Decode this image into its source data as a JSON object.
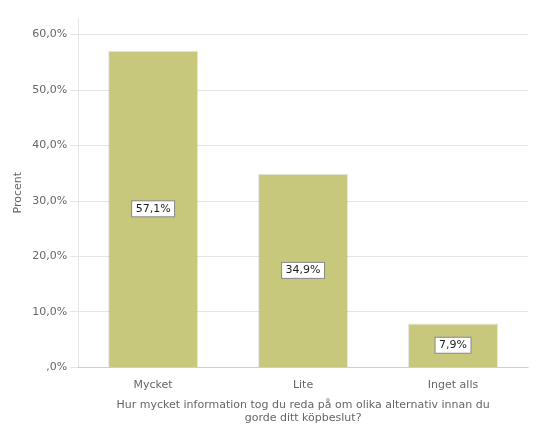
{
  "chart_data": {
    "type": "bar",
    "xlabel": "Hur mycket information tog du reda på om olika alternativ innan du\ngorde ditt köpbeslut?",
    "ylabel": "Procent",
    "categories": [
      "Mycket",
      "Lite",
      "Inget alls"
    ],
    "values": [
      57.1,
      34.9,
      7.9
    ],
    "value_labels": [
      "57,1%",
      "34,9%",
      "7,9%"
    ],
    "color": "#c8c87d",
    "ylim": [
      0,
      63
    ],
    "yticks": [
      {
        "value": 0,
        "label": ",0%"
      },
      {
        "value": 10,
        "label": "10,0%"
      },
      {
        "value": 20,
        "label": "20,0%"
      },
      {
        "value": 30,
        "label": "30,0%"
      },
      {
        "value": 40,
        "label": "40,0%"
      },
      {
        "value": 50,
        "label": "50,0%"
      },
      {
        "value": 60,
        "label": "60,0%"
      }
    ],
    "grid": true,
    "data_labels": true
  }
}
